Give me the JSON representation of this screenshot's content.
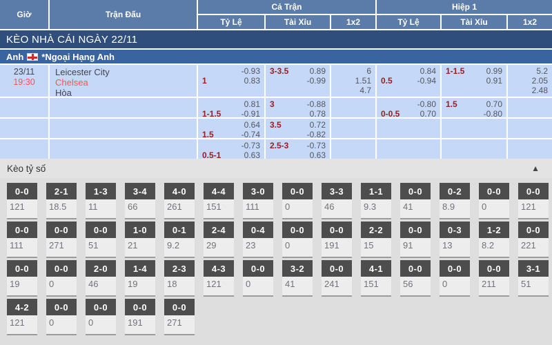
{
  "table_header": {
    "col_time": "Giờ",
    "col_match": "Trận Đấu",
    "group_full_match": "Cả Trận",
    "group_first_half": "Hiệp 1",
    "sub_handicap": "Tỷ Lệ",
    "sub_over_under": "Tài Xỉu",
    "sub_1x2": "1x2"
  },
  "section_title": "KÈO NHÀ CÁI NGÀY 22/11",
  "league": {
    "country": "Anh",
    "flag_icon": "england-flag",
    "name": "*Ngoại Hạng Anh"
  },
  "match": {
    "date": "23/11",
    "time": "19:30",
    "home": "Leicester City",
    "away": "Chelsea",
    "draw": "Hòa"
  },
  "odds_rows": [
    {
      "ft_hdp_line": "1",
      "ft_hdp_v1": "-0.93",
      "ft_hdp_v2": "0.83",
      "ft_ou_line": "3-3.5",
      "ft_ou_v1": "0.89",
      "ft_ou_v2": "-0.99",
      "ft_1x2_1": "6",
      "ft_1x2_2": "1.51",
      "ft_1x2_3": "4.7",
      "h1_hdp_line": "0.5",
      "h1_hdp_v1": "0.84",
      "h1_hdp_v2": "-0.94",
      "h1_ou_line": "1-1.5",
      "h1_ou_v1": "0.99",
      "h1_ou_v2": "0.91",
      "h1_1x2_1": "5.2",
      "h1_1x2_2": "2.05",
      "h1_1x2_3": "2.48"
    },
    {
      "ft_hdp_line": "1-1.5",
      "ft_hdp_v1": "0.81",
      "ft_hdp_v2": "-0.91",
      "ft_ou_line": "3",
      "ft_ou_v1": "-0.88",
      "ft_ou_v2": "0.78",
      "h1_hdp_line": "0-0.5",
      "h1_hdp_v1": "-0.80",
      "h1_hdp_v2": "0.70",
      "h1_ou_line": "1.5",
      "h1_ou_v1": "0.70",
      "h1_ou_v2": "-0.80"
    },
    {
      "ft_hdp_line": "1.5",
      "ft_hdp_v1": "0.64",
      "ft_hdp_v2": "-0.74",
      "ft_ou_line": "3.5",
      "ft_ou_v1": "0.72",
      "ft_ou_v2": "-0.82"
    },
    {
      "ft_hdp_line": "0.5-1",
      "ft_hdp_v1": "-0.73",
      "ft_hdp_v2": "0.63",
      "ft_ou_line": "2.5-3",
      "ft_ou_v1": "-0.73",
      "ft_ou_v2": "0.63"
    }
  ],
  "score_section": {
    "title": "Kèo tỷ số",
    "collapse_icon": "▲",
    "rows": [
      [
        {
          "score": "0-0",
          "value": "121"
        },
        {
          "score": "2-1",
          "value": "18.5"
        },
        {
          "score": "1-3",
          "value": "11"
        },
        {
          "score": "3-4",
          "value": "66"
        },
        {
          "score": "4-0",
          "value": "261"
        },
        {
          "score": "4-4",
          "value": "151"
        },
        {
          "score": "3-0",
          "value": "111"
        },
        {
          "score": "0-0",
          "value": "0"
        },
        {
          "score": "3-3",
          "value": "46"
        },
        {
          "score": "1-1",
          "value": "9.3"
        },
        {
          "score": "0-0",
          "value": "41"
        },
        {
          "score": "0-2",
          "value": "8.9"
        },
        {
          "score": "0-0",
          "value": "0"
        },
        {
          "score": "0-0",
          "value": "121"
        }
      ],
      [
        {
          "score": "0-0",
          "value": "111"
        },
        {
          "score": "0-0",
          "value": "271"
        },
        {
          "score": "0-0",
          "value": "51"
        },
        {
          "score": "1-0",
          "value": "21"
        },
        {
          "score": "0-1",
          "value": "9.2"
        },
        {
          "score": "2-4",
          "value": "29"
        },
        {
          "score": "0-4",
          "value": "23"
        },
        {
          "score": "0-0",
          "value": "0"
        },
        {
          "score": "0-0",
          "value": "191"
        },
        {
          "score": "2-2",
          "value": "15"
        },
        {
          "score": "0-0",
          "value": "91"
        },
        {
          "score": "0-3",
          "value": "13"
        },
        {
          "score": "1-2",
          "value": "8.2"
        },
        {
          "score": "0-0",
          "value": "221"
        }
      ],
      [
        {
          "score": "0-0",
          "value": "19"
        },
        {
          "score": "0-0",
          "value": "0"
        },
        {
          "score": "2-0",
          "value": "46"
        },
        {
          "score": "1-4",
          "value": "19"
        },
        {
          "score": "2-3",
          "value": "18"
        },
        {
          "score": "4-3",
          "value": "121"
        },
        {
          "score": "0-0",
          "value": "0"
        },
        {
          "score": "3-2",
          "value": "41"
        },
        {
          "score": "0-0",
          "value": "241"
        },
        {
          "score": "4-1",
          "value": "151"
        },
        {
          "score": "0-0",
          "value": "56"
        },
        {
          "score": "0-0",
          "value": "0"
        },
        {
          "score": "0-0",
          "value": "211"
        },
        {
          "score": "3-1",
          "value": "51"
        }
      ],
      [
        {
          "score": "4-2",
          "value": "121"
        },
        {
          "score": "0-0",
          "value": "0"
        },
        {
          "score": "0-0",
          "value": "0"
        },
        {
          "score": "0-0",
          "value": "191"
        },
        {
          "score": "0-0",
          "value": "271"
        }
      ]
    ]
  },
  "colors": {
    "header_blue": "#5b7ca8",
    "navy_bar": "#2f4e7c",
    "league_bar": "#3a649f",
    "row_blue": "#c5d8f7",
    "accent_red": "#f4554f",
    "line_red": "#9b1b1e",
    "score_box_dark": "#4d4d4d",
    "section_gray": "#e3e3e3"
  }
}
